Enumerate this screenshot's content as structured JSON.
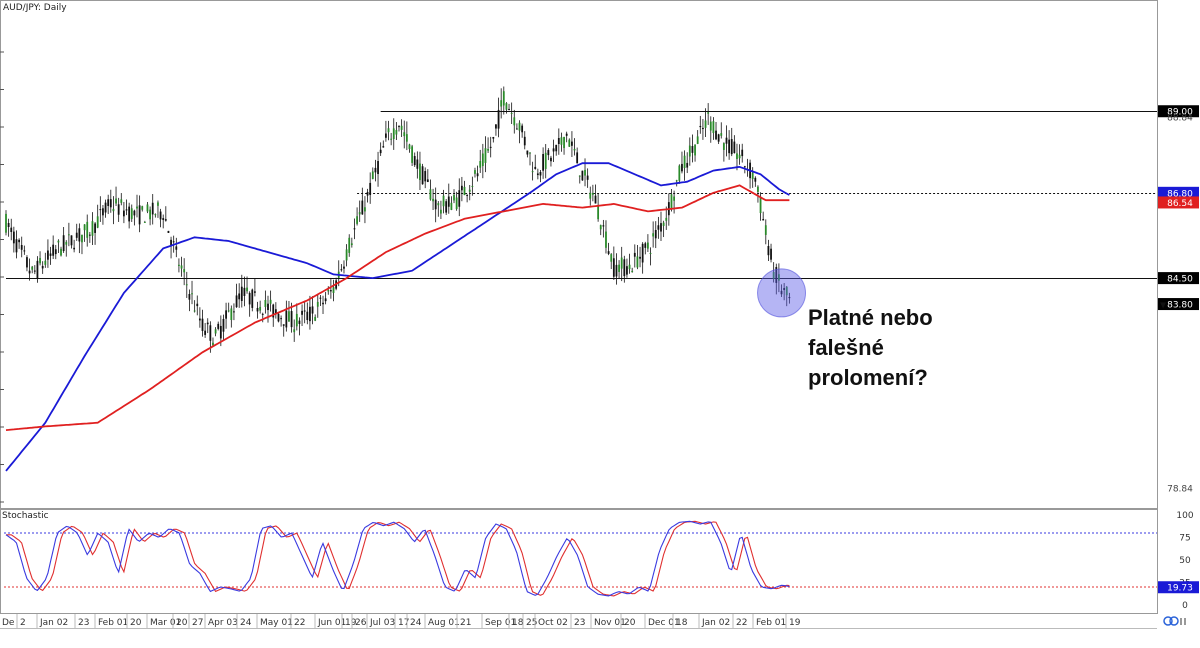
{
  "chart_data": {
    "type": "candlestick",
    "title": "AUD/JPY: Daily",
    "price_axis": {
      "ylim": [
        78.3,
        92.0
      ],
      "ticks": [
        "89.00",
        "88.84",
        "86.80",
        "86.54",
        "84.50",
        "83.80",
        "78.84"
      ]
    },
    "dates": [
      "De",
      "2",
      "Jan 02",
      "23",
      "Feb 01",
      "20",
      "Mar 01",
      "20",
      "27",
      "Apr 03",
      "24",
      "May 01",
      "22",
      "Jun 01",
      "19",
      "26",
      "Jul 03",
      "17",
      "24",
      "Aug 01",
      "21",
      "Sep 01",
      "18",
      "25",
      "Oct 02",
      "23",
      "Nov 01",
      "20",
      "Dec 01",
      "18",
      "Jan 02",
      "22",
      "Feb 01",
      "19"
    ],
    "candle_keypoints": [
      [
        0,
        86.0
      ],
      [
        10,
        84.6
      ],
      [
        20,
        85.3
      ],
      [
        32,
        85.8
      ],
      [
        40,
        86.5
      ],
      [
        50,
        86.2
      ],
      [
        60,
        86.3
      ],
      [
        65,
        85.1
      ],
      [
        75,
        83.2
      ],
      [
        80,
        82.9
      ],
      [
        90,
        84.1
      ],
      [
        100,
        83.7
      ],
      [
        110,
        83.3
      ],
      [
        118,
        83.6
      ],
      [
        125,
        84.2
      ],
      [
        132,
        85.6
      ],
      [
        138,
        86.7
      ],
      [
        145,
        88.2
      ],
      [
        150,
        88.7
      ],
      [
        156,
        87.7
      ],
      [
        165,
        86.4
      ],
      [
        172,
        86.6
      ],
      [
        180,
        87.3
      ],
      [
        186,
        88.2
      ],
      [
        190,
        89.4
      ],
      [
        196,
        88.6
      ],
      [
        202,
        87.4
      ],
      [
        210,
        87.9
      ],
      [
        214,
        88.4
      ],
      [
        220,
        87.3
      ],
      [
        225,
        86.6
      ],
      [
        232,
        84.8
      ],
      [
        238,
        84.8
      ],
      [
        246,
        85.4
      ],
      [
        252,
        86.2
      ],
      [
        258,
        87.5
      ],
      [
        264,
        88.2
      ],
      [
        268,
        88.8
      ],
      [
        275,
        88.1
      ],
      [
        280,
        87.8
      ],
      [
        286,
        87.2
      ],
      [
        290,
        85.7
      ],
      [
        293,
        84.7
      ],
      [
        296,
        84.2
      ],
      [
        299,
        83.9
      ]
    ],
    "sma_blue_keypoints": [
      [
        0,
        79.3
      ],
      [
        15,
        80.6
      ],
      [
        30,
        82.4
      ],
      [
        45,
        84.1
      ],
      [
        60,
        85.3
      ],
      [
        72,
        85.6
      ],
      [
        85,
        85.5
      ],
      [
        100,
        85.2
      ],
      [
        115,
        84.9
      ],
      [
        125,
        84.6
      ],
      [
        140,
        84.5
      ],
      [
        155,
        84.7
      ],
      [
        170,
        85.4
      ],
      [
        185,
        86.1
      ],
      [
        200,
        86.8
      ],
      [
        210,
        87.3
      ],
      [
        220,
        87.6
      ],
      [
        230,
        87.6
      ],
      [
        240,
        87.3
      ],
      [
        250,
        87.0
      ],
      [
        260,
        87.1
      ],
      [
        270,
        87.4
      ],
      [
        280,
        87.5
      ],
      [
        288,
        87.3
      ],
      [
        295,
        86.9
      ],
      [
        300,
        86.7
      ]
    ],
    "sma_red_keypoints": [
      [
        0,
        80.4
      ],
      [
        15,
        80.5
      ],
      [
        35,
        80.6
      ],
      [
        55,
        81.5
      ],
      [
        75,
        82.5
      ],
      [
        95,
        83.3
      ],
      [
        115,
        83.9
      ],
      [
        130,
        84.5
      ],
      [
        145,
        85.2
      ],
      [
        160,
        85.7
      ],
      [
        175,
        86.1
      ],
      [
        190,
        86.3
      ],
      [
        205,
        86.5
      ],
      [
        220,
        86.4
      ],
      [
        232,
        86.5
      ],
      [
        245,
        86.3
      ],
      [
        258,
        86.4
      ],
      [
        270,
        86.8
      ],
      [
        280,
        87.0
      ],
      [
        290,
        86.6
      ],
      [
        300,
        86.6
      ]
    ],
    "horizontal_levels": [
      {
        "price": 89.0,
        "style": "solid",
        "start_index": 143
      },
      {
        "price": 86.8,
        "style": "dotted",
        "start_index": 134
      },
      {
        "price": 84.5,
        "style": "solid",
        "start_index": 0
      }
    ],
    "price_tags": [
      {
        "label": "89.00",
        "price": 89.0,
        "bg": "#000000",
        "fg": "#ffffff"
      },
      {
        "label": "88.84",
        "price": 88.84,
        "bg": "none",
        "fg": "#444444"
      },
      {
        "label": "86.80",
        "price": 86.8,
        "bg": "#1a1ad6",
        "fg": "#ffffff"
      },
      {
        "label": "86.54",
        "price": 86.54,
        "bg": "#e02020",
        "fg": "#ffffff"
      },
      {
        "label": "84.50",
        "price": 84.5,
        "bg": "#000000",
        "fg": "#ffffff"
      },
      {
        "label": "83.80",
        "price": 83.8,
        "bg": "#000000",
        "fg": "#ffffff",
        "marker": "▼"
      },
      {
        "label": "78.84",
        "price": 78.84,
        "bg": "none",
        "fg": "#444444"
      }
    ],
    "stochastic": {
      "label": "Stochastic",
      "levels": [
        80,
        20
      ],
      "ticks": [
        "100",
        "75",
        "50",
        "25",
        "0"
      ],
      "current_label": "19.73",
      "current_value": 19.73,
      "k_keypoints": [
        [
          0,
          78
        ],
        [
          4,
          70
        ],
        [
          8,
          30
        ],
        [
          12,
          15
        ],
        [
          16,
          30
        ],
        [
          20,
          80
        ],
        [
          24,
          88
        ],
        [
          28,
          80
        ],
        [
          32,
          55
        ],
        [
          36,
          80
        ],
        [
          40,
          70
        ],
        [
          44,
          35
        ],
        [
          48,
          85
        ],
        [
          52,
          70
        ],
        [
          56,
          80
        ],
        [
          60,
          75
        ],
        [
          64,
          85
        ],
        [
          68,
          80
        ],
        [
          72,
          45
        ],
        [
          76,
          35
        ],
        [
          80,
          15
        ],
        [
          84,
          20
        ],
        [
          88,
          18
        ],
        [
          92,
          15
        ],
        [
          96,
          30
        ],
        [
          100,
          85
        ],
        [
          104,
          88
        ],
        [
          108,
          75
        ],
        [
          112,
          80
        ],
        [
          116,
          55
        ],
        [
          120,
          30
        ],
        [
          124,
          70
        ],
        [
          128,
          40
        ],
        [
          132,
          15
        ],
        [
          136,
          45
        ],
        [
          140,
          85
        ],
        [
          144,
          92
        ],
        [
          148,
          88
        ],
        [
          152,
          92
        ],
        [
          156,
          85
        ],
        [
          160,
          70
        ],
        [
          164,
          85
        ],
        [
          168,
          55
        ],
        [
          172,
          20
        ],
        [
          176,
          15
        ],
        [
          180,
          40
        ],
        [
          184,
          30
        ],
        [
          188,
          75
        ],
        [
          192,
          90
        ],
        [
          196,
          85
        ],
        [
          200,
          60
        ],
        [
          204,
          15
        ],
        [
          208,
          10
        ],
        [
          212,
          30
        ],
        [
          216,
          55
        ],
        [
          220,
          75
        ],
        [
          224,
          55
        ],
        [
          228,
          20
        ],
        [
          232,
          12
        ],
        [
          236,
          10
        ],
        [
          240,
          15
        ],
        [
          244,
          12
        ],
        [
          248,
          20
        ],
        [
          252,
          15
        ],
        [
          256,
          60
        ],
        [
          260,
          85
        ],
        [
          264,
          92
        ],
        [
          268,
          93
        ],
        [
          272,
          90
        ],
        [
          276,
          93
        ],
        [
          280,
          70
        ],
        [
          284,
          35
        ],
        [
          288,
          80
        ],
        [
          292,
          40
        ],
        [
          296,
          20
        ],
        [
          300,
          18
        ],
        [
          304,
          22
        ],
        [
          308,
          20
        ]
      ]
    }
  },
  "annotation": {
    "text": "Platné nebo\nfalešné\nprolomení?"
  }
}
